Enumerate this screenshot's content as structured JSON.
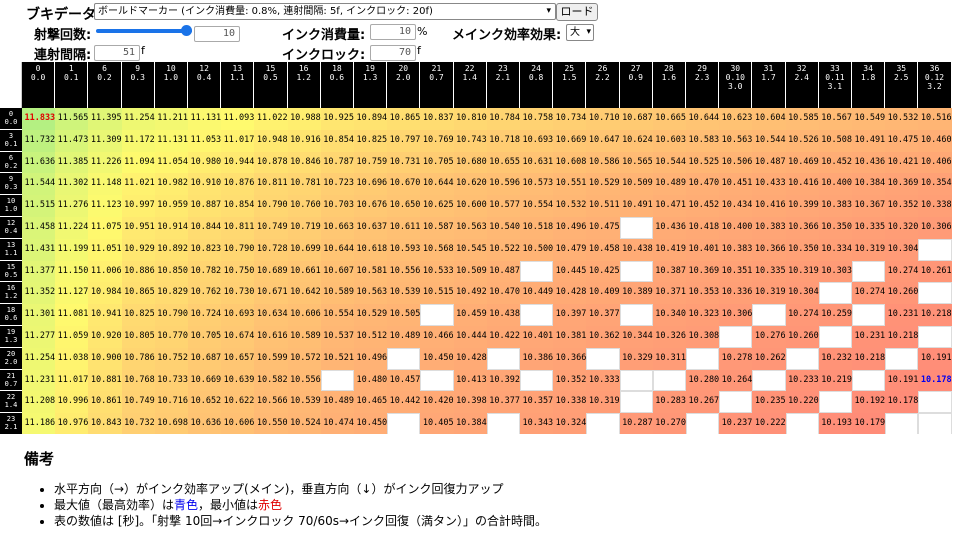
{
  "toolbar": {
    "weapon_label": "ブキデータ:",
    "weapon_select": "ボールドマーカー (インク消費量: 0.8%, 連射間隔: 5f, インクロック: 20f)",
    "load_button": "ロード"
  },
  "params": {
    "shots_label": "射撃回数:",
    "shots_value": "10",
    "consume_label": "インク消費量:",
    "consume_value": "10",
    "consume_unit": "%",
    "efficiency_label": "メインク効率効果:",
    "efficiency_select": "大",
    "interval_label": "連射間隔:",
    "interval_value": "51",
    "interval_unit": "f",
    "lock_label": "インクロック:",
    "lock_value": "70",
    "lock_unit": "f",
    "slider_fraction": 1.0
  },
  "table": {
    "corner": "",
    "columns": [
      [
        "0",
        "0.0"
      ],
      [
        "1",
        "0.1"
      ],
      [
        "6",
        "0.2"
      ],
      [
        "9",
        "0.3"
      ],
      [
        "10",
        "1.0"
      ],
      [
        "12",
        "0.4"
      ],
      [
        "13",
        "1.1"
      ],
      [
        "15",
        "0.5"
      ],
      [
        "16",
        "1.2"
      ],
      [
        "18",
        "0.6"
      ],
      [
        "19",
        "1.3"
      ],
      [
        "20",
        "2.0"
      ],
      [
        "21",
        "0.7"
      ],
      [
        "22",
        "1.4"
      ],
      [
        "23",
        "2.1"
      ],
      [
        "24",
        "0.8"
      ],
      [
        "25",
        "1.5"
      ],
      [
        "26",
        "2.2"
      ],
      [
        "27",
        "0.9"
      ],
      [
        "28",
        "1.6"
      ],
      [
        "29",
        "2.3"
      ],
      [
        "30",
        "0.10",
        "3.0"
      ],
      [
        "31",
        "1.7"
      ],
      [
        "32",
        "2.4"
      ],
      [
        "33",
        "0.11",
        "3.1"
      ],
      [
        "34",
        "1.8"
      ],
      [
        "35",
        "2.5"
      ],
      [
        "36",
        "0.12",
        "3.2"
      ]
    ],
    "rows": [
      {
        "h": [
          "0",
          "0.0"
        ],
        "v": [
          "11.833",
          "11.565",
          "11.395",
          "11.254",
          "11.211",
          "11.131",
          "11.093",
          "11.022",
          "10.988",
          "10.925",
          "10.894",
          "10.865",
          "10.837",
          "10.810",
          "10.784",
          "10.758",
          "10.734",
          "10.710",
          "10.687",
          "10.665",
          "10.644",
          "10.623",
          "10.604",
          "10.585",
          "10.567",
          "10.549",
          "10.532",
          "10.516"
        ]
      },
      {
        "h": [
          "3",
          "0.1"
        ],
        "v": [
          "11.732",
          "11.473",
          "11.309",
          "11.172",
          "11.131",
          "11.053",
          "11.017",
          "10.948",
          "10.916",
          "10.854",
          "10.825",
          "10.797",
          "10.769",
          "10.743",
          "10.718",
          "10.693",
          "10.669",
          "10.647",
          "10.624",
          "10.603",
          "10.583",
          "10.563",
          "10.544",
          "10.526",
          "10.508",
          "10.491",
          "10.475",
          "10.460"
        ]
      },
      {
        "h": [
          "6",
          "0.2"
        ],
        "v": [
          "11.636",
          "11.385",
          "11.226",
          "11.094",
          "11.054",
          "10.980",
          "10.944",
          "10.878",
          "10.846",
          "10.787",
          "10.759",
          "10.731",
          "10.705",
          "10.680",
          "10.655",
          "10.631",
          "10.608",
          "10.586",
          "10.565",
          "10.544",
          "10.525",
          "10.506",
          "10.487",
          "10.469",
          "10.452",
          "10.436",
          "10.421",
          "10.406"
        ]
      },
      {
        "h": [
          "9",
          "0.3"
        ],
        "v": [
          "11.544",
          "11.302",
          "11.148",
          "11.021",
          "10.982",
          "10.910",
          "10.876",
          "10.811",
          "10.781",
          "10.723",
          "10.696",
          "10.670",
          "10.644",
          "10.620",
          "10.596",
          "10.573",
          "10.551",
          "10.529",
          "10.509",
          "10.489",
          "10.470",
          "10.451",
          "10.433",
          "10.416",
          "10.400",
          "10.384",
          "10.369",
          "10.354"
        ]
      },
      {
        "h": [
          "10",
          "1.0"
        ],
        "v": [
          "11.515",
          "11.276",
          "11.123",
          "10.997",
          "10.959",
          "10.887",
          "10.854",
          "10.790",
          "10.760",
          "10.703",
          "10.676",
          "10.650",
          "10.625",
          "10.600",
          "10.577",
          "10.554",
          "10.532",
          "10.511",
          "10.491",
          "10.471",
          "10.452",
          "10.434",
          "10.416",
          "10.399",
          "10.383",
          "10.367",
          "10.352",
          "10.338"
        ]
      },
      {
        "h": [
          "12",
          "0.4"
        ],
        "v": [
          "11.458",
          "11.224",
          "11.075",
          "10.951",
          "10.914",
          "10.844",
          "10.811",
          "10.749",
          "10.719",
          "10.663",
          "10.637",
          "10.611",
          "10.587",
          "10.563",
          "10.540",
          "10.518",
          "10.496",
          "10.475",
          "",
          "10.436",
          "10.418",
          "10.400",
          "10.383",
          "10.366",
          "10.350",
          "10.335",
          "10.320",
          "10.306"
        ]
      },
      {
        "h": [
          "13",
          "1.1"
        ],
        "v": [
          "11.431",
          "11.199",
          "11.051",
          "10.929",
          "10.892",
          "10.823",
          "10.790",
          "10.728",
          "10.699",
          "10.644",
          "10.618",
          "10.593",
          "10.568",
          "10.545",
          "10.522",
          "10.500",
          "10.479",
          "10.458",
          "10.438",
          "10.419",
          "10.401",
          "10.383",
          "10.366",
          "10.350",
          "10.334",
          "10.319",
          "10.304",
          ""
        ]
      },
      {
        "h": [
          "15",
          "0.5"
        ],
        "v": [
          "11.377",
          "11.150",
          "11.006",
          "10.886",
          "10.850",
          "10.782",
          "10.750",
          "10.689",
          "10.661",
          "10.607",
          "10.581",
          "10.556",
          "10.533",
          "10.509",
          "10.487",
          "",
          "10.445",
          "10.425",
          "",
          "10.387",
          "10.369",
          "10.351",
          "10.335",
          "10.319",
          "10.303",
          "",
          "10.274",
          "10.261"
        ]
      },
      {
        "h": [
          "16",
          "1.2"
        ],
        "v": [
          "11.352",
          "11.127",
          "10.984",
          "10.865",
          "10.829",
          "10.762",
          "10.730",
          "10.671",
          "10.642",
          "10.589",
          "10.563",
          "10.539",
          "10.515",
          "10.492",
          "10.470",
          "10.449",
          "10.428",
          "10.409",
          "10.389",
          "10.371",
          "10.353",
          "10.336",
          "10.319",
          "10.304",
          "",
          "10.274",
          "10.260",
          ""
        ]
      },
      {
        "h": [
          "18",
          "0.6"
        ],
        "v": [
          "11.301",
          "11.081",
          "10.941",
          "10.825",
          "10.790",
          "10.724",
          "10.693",
          "10.634",
          "10.606",
          "10.554",
          "10.529",
          "10.505",
          "",
          "10.459",
          "10.438",
          "",
          "10.397",
          "10.377",
          "",
          "10.340",
          "10.323",
          "10.306",
          "",
          "10.274",
          "10.259",
          "",
          "10.231",
          "10.218"
        ]
      },
      {
        "h": [
          "19",
          "1.3"
        ],
        "v": [
          "11.277",
          "11.059",
          "10.920",
          "10.805",
          "10.770",
          "10.705",
          "10.674",
          "10.616",
          "10.589",
          "10.537",
          "10.512",
          "10.489",
          "10.466",
          "10.444",
          "10.422",
          "10.401",
          "10.381",
          "10.362",
          "10.344",
          "10.326",
          "10.308",
          "",
          "10.276",
          "10.260",
          "",
          "10.231",
          "10.218",
          ""
        ]
      },
      {
        "h": [
          "20",
          "2.0"
        ],
        "v": [
          "11.254",
          "11.038",
          "10.900",
          "10.786",
          "10.752",
          "10.687",
          "10.657",
          "10.599",
          "10.572",
          "10.521",
          "10.496",
          "",
          "10.450",
          "10.428",
          "",
          "10.386",
          "10.366",
          "",
          "10.329",
          "10.311",
          "",
          "10.278",
          "10.262",
          "",
          "10.232",
          "10.218",
          "",
          "10.191"
        ]
      },
      {
        "h": [
          "21",
          "0.7"
        ],
        "v": [
          "11.231",
          "11.017",
          "10.881",
          "10.768",
          "10.733",
          "10.669",
          "10.639",
          "10.582",
          "10.556",
          "",
          "10.480",
          "10.457",
          "",
          "10.413",
          "10.392",
          "",
          "10.352",
          "10.333",
          "",
          "",
          "10.280",
          "10.264",
          "",
          "10.233",
          "10.219",
          "",
          "10.191",
          "10.178"
        ]
      },
      {
        "h": [
          "22",
          "1.4"
        ],
        "v": [
          "11.208",
          "10.996",
          "10.861",
          "10.749",
          "10.716",
          "10.652",
          "10.622",
          "10.566",
          "10.539",
          "10.489",
          "10.465",
          "10.442",
          "10.420",
          "10.398",
          "10.377",
          "10.357",
          "10.338",
          "10.319",
          "",
          "10.283",
          "10.267",
          "",
          "10.235",
          "10.220",
          "",
          "10.192",
          "10.178",
          ""
        ]
      },
      {
        "h": [
          "23",
          "2.1"
        ],
        "v": [
          "11.186",
          "10.976",
          "10.843",
          "10.732",
          "10.698",
          "10.636",
          "10.606",
          "10.550",
          "10.524",
          "10.474",
          "10.450",
          "",
          "10.405",
          "10.384",
          "",
          "10.343",
          "10.324",
          "",
          "10.287",
          "10.270",
          "",
          "10.237",
          "10.222",
          "",
          "10.193",
          "10.179",
          "",
          ""
        ]
      }
    ],
    "max_value": "11.833",
    "min_value": "10.178"
  },
  "notes": {
    "heading": "備考",
    "item1": "水平方向（→）がインク効率アップ(メイン)，垂直方向（↓）がインク回復力アップ",
    "item2_prefix": "最大値（最高効率）は",
    "item2_blue": "青色",
    "item2_mid": "，最小値は",
    "item2_red": "赤色",
    "item3": "表の数値は [秒]。「射撃 10回→インクロック 70/60s→インク回復（満タン）」の合計時間。"
  }
}
